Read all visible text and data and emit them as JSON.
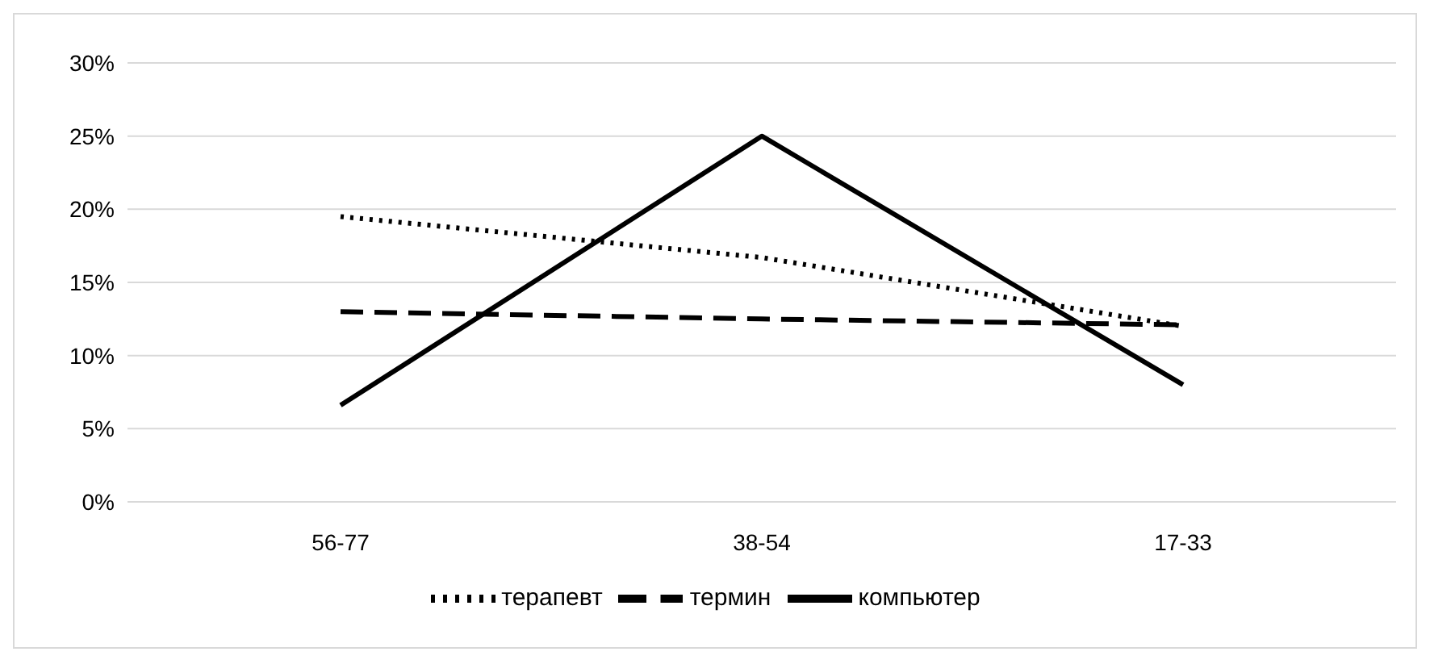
{
  "chart_data": {
    "type": "line",
    "categories": [
      "56-77",
      "38-54",
      "17-33"
    ],
    "series": [
      {
        "name": "терапевт",
        "color": "#000000",
        "line_style": "dotted",
        "values": [
          19.5,
          16.7,
          12
        ]
      },
      {
        "name": "термин",
        "color": "#000000",
        "line_style": "dashed",
        "values": [
          13,
          12.5,
          12.1
        ]
      },
      {
        "name": "компьютер",
        "color": "#000000",
        "line_style": "solid",
        "values": [
          6.6,
          25,
          8
        ]
      }
    ],
    "ylim": [
      0,
      30
    ],
    "yticks": [
      {
        "value": 0,
        "label": "0%"
      },
      {
        "value": 5,
        "label": "5%"
      },
      {
        "value": 10,
        "label": "10%"
      },
      {
        "value": 15,
        "label": "15%"
      },
      {
        "value": 20,
        "label": "20%"
      },
      {
        "value": 25,
        "label": "25%"
      },
      {
        "value": 30,
        "label": "30%"
      }
    ],
    "grid": "y",
    "legend": "bottom",
    "marker": "none"
  }
}
